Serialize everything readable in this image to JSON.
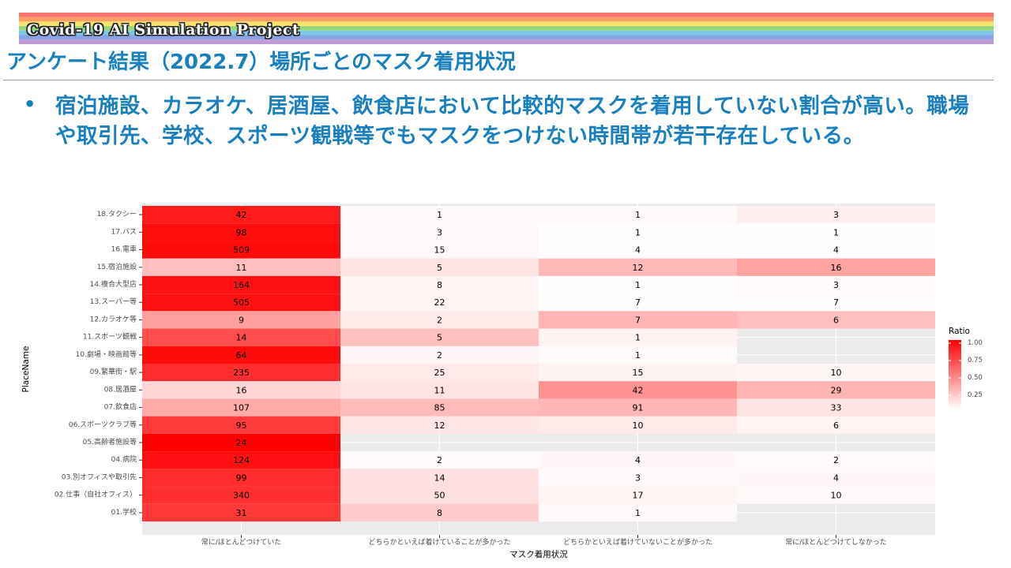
{
  "header": {
    "banner_title": "Covid-19 AI Simulation Project",
    "slide_title": "アンケート結果（2022.7）場所ごとのマスク着用状況"
  },
  "bullet": {
    "marker": "•",
    "text": "宿泊施設、カラオケ、居酒屋、飲食店において比較的マスクを着用していない割合が高い。職場や取引先、学校、スポーツ観戦等でもマスクをつけない時間帯が若干存在している。"
  },
  "colors": {
    "accent": "#1a7fbf",
    "heat_high": "#ff0000",
    "heat_low": "#ffffff",
    "panel": "#ebebeb"
  },
  "chart_data": {
    "type": "heatmap",
    "xlabel": "マスク着用状況",
    "ylabel": "PlaceName",
    "x_categories": [
      "常に/ほとんどつけていた",
      "どちらかといえば着けていることが多かった",
      "どちらかといえば着けていないことが多かった",
      "常に/ほとんどつけてしなかった"
    ],
    "y_categories": [
      "18.タクシー",
      "17.バス",
      "16.電車",
      "15.宿泊施設",
      "14.複合大型店",
      "13.スーパー等",
      "12.カラオケ等",
      "11.スポーツ観戦",
      "10.劇場・映画館等",
      "09.繁華街・駅",
      "08.居酒屋",
      "07.飲食店",
      "06.スポーツクラブ等",
      "05.高齢者施設等",
      "04.病院",
      "03.別オフィスや取引先",
      "02.仕事（自社オフィス）",
      "01.学校"
    ],
    "values": [
      [
        42,
        1,
        1,
        3
      ],
      [
        98,
        3,
        1,
        1
      ],
      [
        509,
        15,
        4,
        4
      ],
      [
        11,
        5,
        12,
        16
      ],
      [
        164,
        8,
        1,
        3
      ],
      [
        505,
        22,
        7,
        7
      ],
      [
        9,
        2,
        7,
        6
      ],
      [
        14,
        5,
        1,
        null
      ],
      [
        64,
        2,
        1,
        null
      ],
      [
        235,
        25,
        15,
        10
      ],
      [
        16,
        11,
        42,
        29
      ],
      [
        107,
        85,
        91,
        33
      ],
      [
        95,
        12,
        10,
        6
      ],
      [
        24,
        null,
        null,
        null
      ],
      [
        124,
        2,
        4,
        2
      ],
      [
        99,
        14,
        3,
        4
      ],
      [
        340,
        50,
        17,
        10
      ],
      [
        31,
        8,
        1,
        null
      ]
    ],
    "legend": {
      "title": "Ratio",
      "ticks": [
        "1.00",
        "0.75",
        "0.50",
        "0.25"
      ],
      "tick_values": [
        1.0,
        0.75,
        0.5,
        0.25
      ],
      "range": [
        0,
        1
      ],
      "placement": "right"
    },
    "grid": true
  }
}
